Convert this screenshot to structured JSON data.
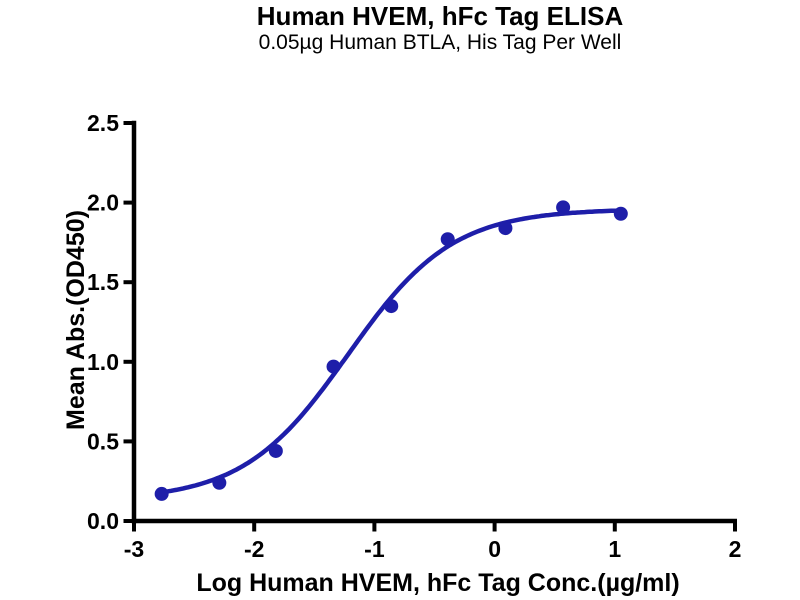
{
  "chart_data": {
    "type": "scatter",
    "title": "Human HVEM, hFc Tag ELISA",
    "subtitle": "0.05µg Human BTLA, His Tag Per Well",
    "xlabel": "Log Human HVEM, hFc Tag Conc.(µg/ml)",
    "ylabel": "Mean Abs.(OD450)",
    "xlim": [
      -3,
      2
    ],
    "ylim": [
      0,
      2.5
    ],
    "x_ticks": [
      -3,
      -2,
      -1,
      0,
      1,
      2
    ],
    "y_ticks": [
      0,
      0.5,
      1,
      1.5,
      2,
      2.5
    ],
    "grid": false,
    "legend_position": "none",
    "axis_color": "#000000",
    "series": [
      {
        "name": "Human HVEM, hFc Tag",
        "marker": "circle",
        "color": "#1E1EA9",
        "x_log_conc": [
          -2.77,
          -2.29,
          -1.82,
          -1.34,
          -0.86,
          -0.39,
          0.09,
          0.57,
          1.05
        ],
        "y_od450": [
          0.17,
          0.24,
          0.44,
          0.97,
          1.35,
          1.77,
          1.84,
          1.97,
          1.93
        ]
      }
    ],
    "fit_curve": {
      "model": "4PL",
      "bottom": 0.13,
      "top": 1.96,
      "logEC50": -1.22,
      "hill": 1.0,
      "x_start": -2.77,
      "x_end": 1.06,
      "color": "#1E1EA9"
    }
  }
}
